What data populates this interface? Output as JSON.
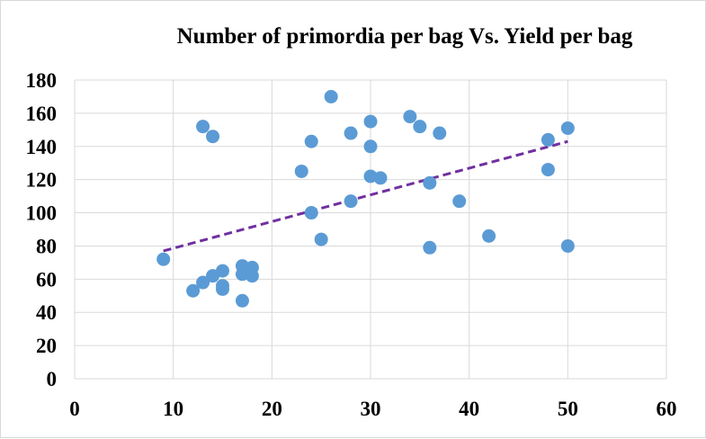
{
  "chart_data": {
    "type": "scatter",
    "title": "Number of primordia per bag Vs. Yield per bag",
    "xlabel": "",
    "ylabel": "",
    "xlim": [
      0,
      60
    ],
    "ylim": [
      0,
      180
    ],
    "x_ticks": [
      "0",
      "10",
      "20",
      "30",
      "40",
      "50",
      "60"
    ],
    "y_ticks": [
      "0",
      "20",
      "40",
      "60",
      "80",
      "100",
      "120",
      "140",
      "160",
      "180"
    ],
    "grid": true,
    "legend": "none",
    "colors": {
      "points": "#5b9bd5",
      "trendline": "#7030a0",
      "grid": "#d9d9d9"
    },
    "series": [
      {
        "x": [
          9,
          12,
          13,
          13,
          14,
          14,
          15,
          15,
          15,
          17,
          17,
          17,
          18,
          18,
          23,
          24,
          24,
          25,
          26,
          28,
          28,
          30,
          30,
          30,
          31,
          34,
          35,
          36,
          36,
          37,
          39,
          42,
          48,
          48,
          50,
          50
        ],
        "y": [
          72,
          53,
          58,
          152,
          62,
          146,
          65,
          56,
          54,
          68,
          63,
          47,
          67,
          62,
          125,
          143,
          100,
          84,
          170,
          148,
          107,
          155,
          140,
          122,
          121,
          158,
          152,
          118,
          79,
          148,
          107,
          86,
          144,
          126,
          151,
          80
        ]
      }
    ],
    "trendline": {
      "type": "linear",
      "style": "dashed",
      "x": [
        9,
        50
      ],
      "y": [
        77,
        143
      ]
    }
  }
}
